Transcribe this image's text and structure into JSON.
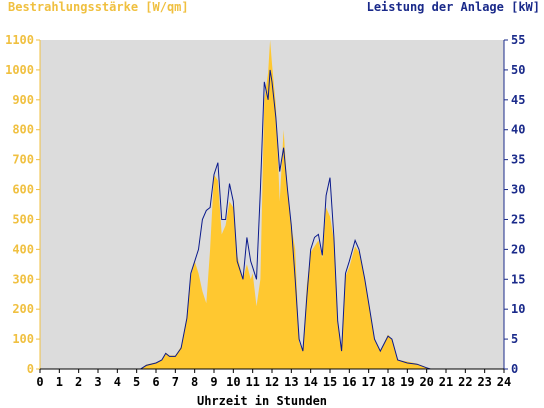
{
  "chart_data": {
    "type": "area",
    "title_left": "Bestrahlungsstärke [W/qm]",
    "title_right": "Leistung der Anlage [kW]",
    "xlabel": "Uhrzeit in Stunden",
    "xlim": [
      0,
      24
    ],
    "ylim_left": [
      0,
      1100
    ],
    "ylim_right": [
      0,
      55
    ],
    "grid": false,
    "colors": {
      "irradiance": "#ffc830",
      "power": "#0a1a8c",
      "plot_bg": "#dcdcdc",
      "left_axis": "#f0c040",
      "right_axis": "#1a2a8a"
    },
    "x_ticks": [
      "0",
      "1",
      "2",
      "3",
      "4",
      "5",
      "6",
      "7",
      "8",
      "9",
      "10",
      "11",
      "12",
      "13",
      "14",
      "15",
      "16",
      "17",
      "18",
      "19",
      "20",
      "21",
      "22",
      "23",
      "24"
    ],
    "y_ticks_left": [
      "0",
      "100",
      "200",
      "300",
      "400",
      "500",
      "600",
      "700",
      "800",
      "900",
      "1000",
      "1100"
    ],
    "y_ticks_right": [
      "0",
      "5",
      "10",
      "15",
      "20",
      "25",
      "30",
      "35",
      "40",
      "45",
      "50",
      "55"
    ],
    "series": [
      {
        "name": "Bestrahlungsstärke [W/qm]",
        "axis": "left",
        "style": "area",
        "points": [
          [
            0,
            0
          ],
          [
            5.2,
            0
          ],
          [
            5.5,
            15
          ],
          [
            6,
            22
          ],
          [
            6.3,
            30
          ],
          [
            6.5,
            55
          ],
          [
            6.7,
            45
          ],
          [
            7,
            45
          ],
          [
            7.3,
            75
          ],
          [
            7.6,
            180
          ],
          [
            7.8,
            310
          ],
          [
            8,
            360
          ],
          [
            8.2,
            320
          ],
          [
            8.4,
            260
          ],
          [
            8.6,
            220
          ],
          [
            8.8,
            400
          ],
          [
            9,
            650
          ],
          [
            9.2,
            630
          ],
          [
            9.4,
            450
          ],
          [
            9.6,
            480
          ],
          [
            9.8,
            560
          ],
          [
            10,
            540
          ],
          [
            10.2,
            380
          ],
          [
            10.5,
            300
          ],
          [
            10.7,
            350
          ],
          [
            10.9,
            300
          ],
          [
            11,
            320
          ],
          [
            11.2,
            210
          ],
          [
            11.4,
            300
          ],
          [
            11.6,
            900
          ],
          [
            11.8,
            990
          ],
          [
            11.9,
            1100
          ],
          [
            12,
            1020
          ],
          [
            12.2,
            880
          ],
          [
            12.4,
            560
          ],
          [
            12.6,
            800
          ],
          [
            12.8,
            600
          ],
          [
            13,
            480
          ],
          [
            13.2,
            400
          ],
          [
            13.4,
            90
          ],
          [
            13.6,
            60
          ],
          [
            13.8,
            280
          ],
          [
            14,
            390
          ],
          [
            14.2,
            410
          ],
          [
            14.4,
            430
          ],
          [
            14.6,
            370
          ],
          [
            14.8,
            540
          ],
          [
            15,
            510
          ],
          [
            15.2,
            430
          ],
          [
            15.4,
            160
          ],
          [
            15.6,
            60
          ],
          [
            15.8,
            310
          ],
          [
            16,
            340
          ],
          [
            16.3,
            410
          ],
          [
            16.5,
            390
          ],
          [
            16.8,
            300
          ],
          [
            17,
            220
          ],
          [
            17.3,
            100
          ],
          [
            17.6,
            60
          ],
          [
            18,
            115
          ],
          [
            18.2,
            100
          ],
          [
            18.5,
            30
          ],
          [
            19,
            25
          ],
          [
            19.5,
            18
          ],
          [
            20,
            5
          ],
          [
            20.2,
            0
          ],
          [
            24,
            0
          ]
        ]
      },
      {
        "name": "Leistung der Anlage [kW]",
        "axis": "right",
        "style": "line",
        "points": [
          [
            0,
            0
          ],
          [
            5.2,
            0
          ],
          [
            5.5,
            0.6
          ],
          [
            6,
            1
          ],
          [
            6.3,
            1.5
          ],
          [
            6.5,
            2.6
          ],
          [
            6.7,
            2.1
          ],
          [
            7,
            2.1
          ],
          [
            7.3,
            3.5
          ],
          [
            7.6,
            8.5
          ],
          [
            7.8,
            16
          ],
          [
            8,
            18
          ],
          [
            8.2,
            20
          ],
          [
            8.4,
            25
          ],
          [
            8.6,
            26.5
          ],
          [
            8.8,
            27
          ],
          [
            9,
            32.5
          ],
          [
            9.2,
            34.5
          ],
          [
            9.4,
            25
          ],
          [
            9.6,
            25
          ],
          [
            9.8,
            31
          ],
          [
            10,
            28
          ],
          [
            10.2,
            18
          ],
          [
            10.5,
            15
          ],
          [
            10.7,
            22
          ],
          [
            10.9,
            18
          ],
          [
            11,
            17
          ],
          [
            11.2,
            15
          ],
          [
            11.4,
            30
          ],
          [
            11.6,
            48
          ],
          [
            11.8,
            45
          ],
          [
            11.9,
            50
          ],
          [
            12,
            48
          ],
          [
            12.2,
            42
          ],
          [
            12.4,
            33
          ],
          [
            12.6,
            37
          ],
          [
            12.8,
            30
          ],
          [
            13,
            24
          ],
          [
            13.2,
            15
          ],
          [
            13.4,
            5
          ],
          [
            13.6,
            3
          ],
          [
            13.8,
            12
          ],
          [
            14,
            20
          ],
          [
            14.2,
            22
          ],
          [
            14.4,
            22.5
          ],
          [
            14.6,
            19
          ],
          [
            14.8,
            29
          ],
          [
            15,
            32
          ],
          [
            15.2,
            22
          ],
          [
            15.4,
            8
          ],
          [
            15.6,
            3
          ],
          [
            15.8,
            16
          ],
          [
            16,
            18
          ],
          [
            16.3,
            21.5
          ],
          [
            16.5,
            20
          ],
          [
            16.8,
            15
          ],
          [
            17,
            11
          ],
          [
            17.3,
            5
          ],
          [
            17.6,
            3
          ],
          [
            18,
            5.5
          ],
          [
            18.2,
            5
          ],
          [
            18.5,
            1.5
          ],
          [
            19,
            1
          ],
          [
            19.5,
            0.8
          ],
          [
            20,
            0.2
          ],
          [
            20.2,
            0
          ],
          [
            24,
            0
          ]
        ]
      }
    ]
  }
}
